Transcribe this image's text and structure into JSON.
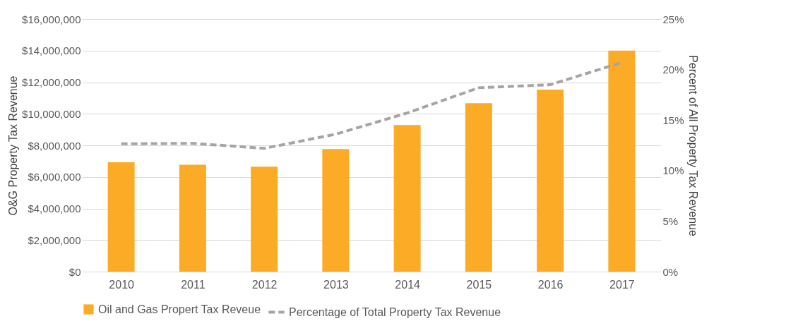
{
  "chart_data": {
    "type": "bar",
    "categories": [
      "2010",
      "2011",
      "2012",
      "2013",
      "2014",
      "2015",
      "2016",
      "2017"
    ],
    "ylabel": "O&G Property Tax Revenue",
    "y2label": "Percent of All Property Tax Revenue",
    "series": [
      {
        "name": "Oil and Gas Propert Tax Reveue",
        "color": "#fbab25",
        "values": [
          6930000,
          6770000,
          6650000,
          7760000,
          9280000,
          10670000,
          11530000,
          14000000
        ]
      },
      {
        "name": "Percentage of Total Property Tax Revenue",
        "type": "line",
        "axis": "y2",
        "color": "#a5a5a5",
        "line_style": "dashed",
        "marker": "none",
        "values": [
          12.65,
          12.7,
          12.2,
          13.6,
          15.7,
          18.2,
          18.5,
          20.7
        ]
      }
    ],
    "ylim": [
      0,
      16000000
    ],
    "yticks": [
      {
        "value": 0,
        "label": "$0"
      },
      {
        "value": 2000000,
        "label": "$2,000,000"
      },
      {
        "value": 4000000,
        "label": "$4,000,000"
      },
      {
        "value": 6000000,
        "label": "$6,000,000"
      },
      {
        "value": 8000000,
        "label": "$8,000,000"
      },
      {
        "value": 10000000,
        "label": "$10,000,000"
      },
      {
        "value": 12000000,
        "label": "$12,000,000"
      },
      {
        "value": 14000000,
        "label": "$14,000,000"
      },
      {
        "value": 16000000,
        "label": "$16,000,000"
      }
    ],
    "y2lim": [
      0,
      25
    ],
    "y2ticks": [
      {
        "value": 0,
        "label": "0%"
      },
      {
        "value": 5,
        "label": "5%"
      },
      {
        "value": 10,
        "label": "10%"
      },
      {
        "value": 15,
        "label": "15%"
      },
      {
        "value": 20,
        "label": "20%"
      },
      {
        "value": 25,
        "label": "25%"
      }
    ],
    "grid": "y",
    "legend": "bottom"
  }
}
